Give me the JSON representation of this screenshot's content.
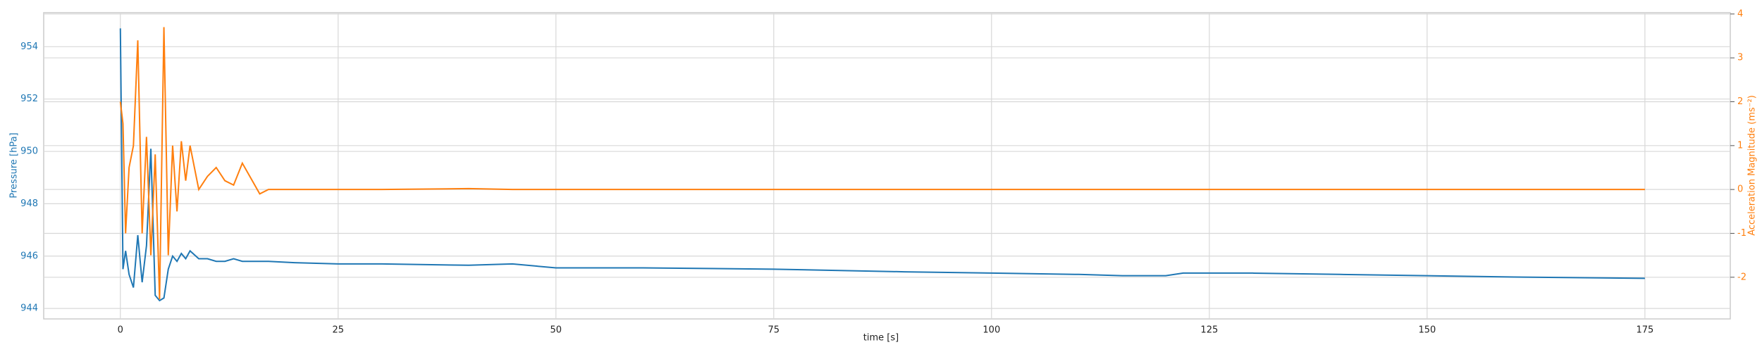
{
  "chart_data": {
    "type": "line",
    "xlabel": "time [s]",
    "ylabel": "Pressure [hPa]",
    "y2label": "Acceleration Magnitude (ms⁻²)",
    "x": [
      0,
      0.3,
      0.6,
      1,
      1.5,
      2,
      2.5,
      3,
      3.5,
      4,
      4.5,
      5,
      5.5,
      6,
      6.5,
      7,
      7.5,
      8,
      9,
      10,
      11,
      12,
      13,
      14,
      16,
      17,
      20,
      25,
      30,
      40,
      45,
      50,
      60,
      75,
      90,
      100,
      110,
      115,
      120,
      122,
      130,
      140,
      150,
      160,
      175
    ],
    "series": [
      {
        "name": "Pressure",
        "color": "#1f77b4",
        "axis": "y",
        "values": [
          954.7,
          945.5,
          946.2,
          945.3,
          944.8,
          946.8,
          945.0,
          946.4,
          950.1,
          944.5,
          944.3,
          944.4,
          945.5,
          946.0,
          945.8,
          946.1,
          945.9,
          946.2,
          945.9,
          945.9,
          945.8,
          945.8,
          945.9,
          945.8,
          945.8,
          945.8,
          945.75,
          945.7,
          945.7,
          945.65,
          945.7,
          945.55,
          945.55,
          945.5,
          945.4,
          945.35,
          945.3,
          945.25,
          945.25,
          945.35,
          945.35,
          945.3,
          945.25,
          945.2,
          945.15
        ]
      },
      {
        "name": "Acceleration Magnitude",
        "color": "#ff7f0e",
        "axis": "y2",
        "values": [
          2.0,
          1.5,
          -1.0,
          0.5,
          1.0,
          3.4,
          -1.0,
          1.2,
          -1.5,
          0.8,
          -2.5,
          3.7,
          -1.5,
          1.0,
          -0.5,
          1.1,
          0.2,
          1.0,
          0.0,
          0.3,
          0.5,
          0.2,
          0.1,
          0.6,
          -0.1,
          0.0,
          0.0,
          0.0,
          0.0,
          0.02,
          0.0,
          0.0,
          0.0,
          0.0,
          0.0,
          0.0,
          0.0,
          0.0,
          0.0,
          0.0,
          0.0,
          0.0,
          0.0,
          0.0,
          0.0
        ]
      }
    ],
    "xlim": [
      -8.8,
      184.8
    ],
    "xticks": [
      0,
      25,
      50,
      75,
      100,
      125,
      150,
      175
    ],
    "ylim": [
      943.6,
      955.3
    ],
    "yticks": [
      944,
      946,
      948,
      950,
      952,
      954
    ],
    "y2lim": [
      -2.95,
      4.03
    ],
    "y2ticks": [
      -2,
      -1,
      0,
      1,
      2,
      3,
      4
    ],
    "grid": true
  }
}
